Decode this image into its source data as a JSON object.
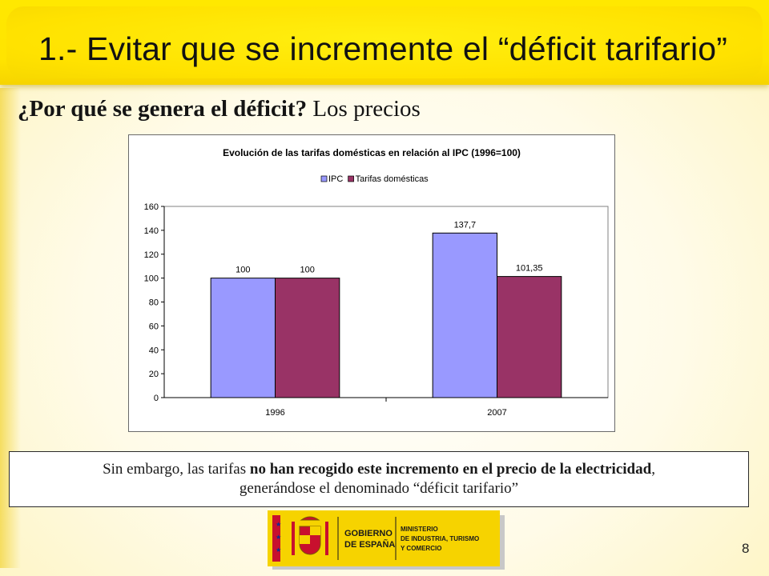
{
  "slide": {
    "title": "1.- Evitar que se incremente el “déficit tarifario”",
    "subtitle_bold": "¿Por qué se genera el déficit?",
    "subtitle_rest": "Los precios",
    "page_number": "8"
  },
  "note": {
    "part1": "Sin embargo, las tarifas ",
    "bold": "no han recogido este incremento en el precio de la electricidad",
    "part2": ",",
    "line2": "generándose el denominado “déficit tarifario”"
  },
  "logo": {
    "line1": "GOBIERNO",
    "line2": "DE ESPAÑA",
    "ministry_line1": "MINISTERIO",
    "ministry_line2": "DE INDUSTRIA, TURISMO",
    "ministry_line3": "Y COMERCIO",
    "colors": {
      "yellow": "#f6d300",
      "red": "#c8102e",
      "blue": "#003399"
    }
  },
  "chart_data": {
    "type": "bar",
    "title": "Evolución de las tarifas domésticas en relación al IPC (1996=100)",
    "categories": [
      "1996",
      "2007"
    ],
    "series": [
      {
        "name": "IPC",
        "values": [
          100,
          137.7
        ],
        "labels": [
          "100",
          "137,7"
        ],
        "color": "#9999ff"
      },
      {
        "name": "Tarifas domésticas",
        "values": [
          100,
          101.35
        ],
        "labels": [
          "100",
          "101,35"
        ],
        "color": "#993366"
      }
    ],
    "ylim": [
      0,
      160
    ],
    "yticks": [
      0,
      20,
      40,
      60,
      80,
      100,
      120,
      140,
      160
    ],
    "grid": false,
    "legend": "top"
  }
}
